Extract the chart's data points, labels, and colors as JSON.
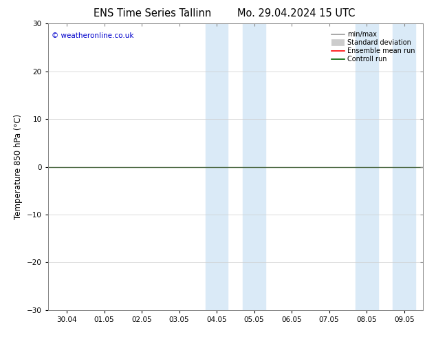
{
  "title_left": "ENS Time Series Tallinn",
  "title_right": "Mo. 29.04.2024 15 UTC",
  "ylabel": "Temperature 850 hPa (°C)",
  "ylim": [
    -30,
    30
  ],
  "yticks": [
    -30,
    -20,
    -10,
    0,
    10,
    20,
    30
  ],
  "x_tick_labels": [
    "30.04",
    "01.05",
    "02.05",
    "03.05",
    "04.05",
    "05.05",
    "06.05",
    "07.05",
    "08.05",
    "09.05"
  ],
  "x_tick_positions": [
    0,
    1,
    2,
    3,
    4,
    5,
    6,
    7,
    8,
    9
  ],
  "xlim": [
    -0.5,
    9.5
  ],
  "bg_color": "#ffffff",
  "plot_bg_color": "#ffffff",
  "shade_color": "#daeaf7",
  "shade_bands": [
    [
      3.7,
      4.3
    ],
    [
      4.7,
      5.3
    ],
    [
      7.7,
      8.3
    ],
    [
      8.7,
      9.3
    ]
  ],
  "zero_line_color": "#4a6741",
  "zero_line_y": 0,
  "copyright_text": "© weatheronline.co.uk",
  "copyright_color": "#0000cc",
  "legend_items": [
    {
      "label": "min/max",
      "color": "#999999",
      "lw": 1.2
    },
    {
      "label": "Standard deviation",
      "color": "#cccccc",
      "lw": 7
    },
    {
      "label": "Ensemble mean run",
      "color": "#ff0000",
      "lw": 1.2
    },
    {
      "label": "Controll run",
      "color": "#006400",
      "lw": 1.2
    }
  ],
  "grid_color": "#cccccc",
  "tick_label_fontsize": 7.5,
  "axis_label_fontsize": 8.5,
  "title_fontsize": 10.5
}
